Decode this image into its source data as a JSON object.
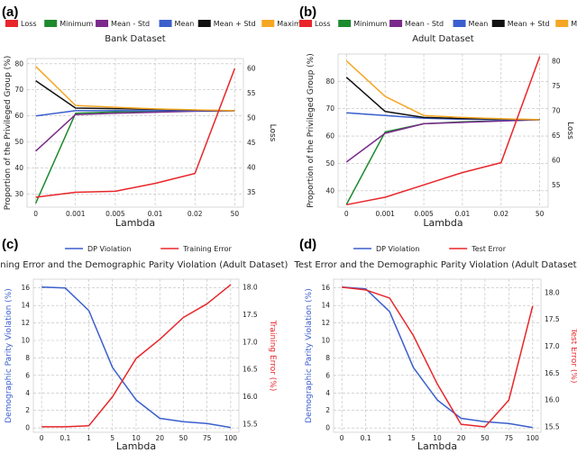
{
  "chart_data": [
    {
      "panel": "(a)",
      "type": "line",
      "title": "Bank Dataset",
      "xlabel": "Lambda",
      "ylabel": "Proportion of the Privileged Group (%)",
      "y2label": "Loss",
      "categories": [
        "0",
        "0.001",
        "0.005",
        "0.01",
        "0.02",
        "50"
      ],
      "ylim": [
        25,
        82
      ],
      "yticks": [
        30,
        40,
        50,
        60,
        70,
        80
      ],
      "y2lim": [
        32,
        62
      ],
      "y2ticks": [
        35,
        40,
        45,
        50,
        55,
        60
      ],
      "series": [
        {
          "name": "Minimum",
          "color": "#1e8a2e",
          "axis": "left",
          "values": [
            26.5,
            61,
            61.5,
            61.8,
            62,
            62
          ]
        },
        {
          "name": "Mean - Std",
          "color": "#7b2a8c",
          "axis": "left",
          "values": [
            46.5,
            60.5,
            61,
            61.4,
            61.8,
            62
          ]
        },
        {
          "name": "Mean",
          "color": "#3a5fcd",
          "axis": "left",
          "values": [
            60,
            62,
            62,
            62,
            62,
            62
          ]
        },
        {
          "name": "Mean + Std",
          "color": "#111111",
          "axis": "left",
          "values": [
            73.5,
            63,
            62.8,
            62.5,
            62.2,
            62
          ]
        },
        {
          "name": "Maximum",
          "color": "#f5a623",
          "axis": "left",
          "values": [
            79,
            64,
            63.3,
            62.7,
            62.3,
            62
          ]
        },
        {
          "name": "Loss",
          "color": "#e8262a",
          "axis": "right",
          "values": [
            34,
            35,
            35.2,
            36.8,
            38.8,
            60
          ]
        }
      ]
    },
    {
      "panel": "(b)",
      "type": "line",
      "title": "Adult Dataset",
      "xlabel": "Lambda",
      "ylabel": "Proportion of the Privileged Group (%)",
      "y2label": "Loss",
      "categories": [
        "0",
        "0.001",
        "0.005",
        "0.01",
        "0.02",
        "50"
      ],
      "ylim": [
        34,
        90
      ],
      "yticks": [
        40,
        50,
        60,
        70,
        80
      ],
      "y2lim": [
        50.5,
        81.5
      ],
      "y2ticks": [
        55,
        60,
        65,
        70,
        75,
        80
      ],
      "series": [
        {
          "name": "Minimum",
          "color": "#1e8a2e",
          "axis": "left",
          "values": [
            35,
            61.5,
            64.5,
            65.2,
            65.6,
            66
          ]
        },
        {
          "name": "Mean - Std",
          "color": "#7b2a8c",
          "axis": "left",
          "values": [
            50.5,
            61,
            64.5,
            65,
            65.5,
            66
          ]
        },
        {
          "name": "Mean",
          "color": "#3a5fcd",
          "axis": "left",
          "values": [
            68.5,
            67.5,
            66.5,
            66.2,
            66,
            66
          ]
        },
        {
          "name": "Mean + Std",
          "color": "#111111",
          "axis": "left",
          "values": [
            81.5,
            69,
            66.8,
            66.4,
            66.2,
            66
          ]
        },
        {
          "name": "Maximum",
          "color": "#f5a623",
          "axis": "left",
          "values": [
            87.5,
            74.5,
            67.5,
            66.8,
            66.3,
            66
          ]
        },
        {
          "name": "Loss",
          "color": "#e8262a",
          "axis": "right",
          "values": [
            51,
            52.5,
            55,
            57.5,
            59.5,
            81
          ]
        }
      ]
    },
    {
      "panel": "(c)",
      "type": "line",
      "title": "Training Error and the Demographic Parity Violation (Adult Dataset)",
      "xlabel": "Lambda",
      "ylabel": "Demographic Parity Violation (%)",
      "y2label": "Training Error (%)",
      "categories": [
        "0",
        "0.1",
        "1",
        "5",
        "10",
        "20",
        "50",
        "75",
        "100"
      ],
      "ylim": [
        -0.5,
        17
      ],
      "yticks": [
        0,
        2,
        4,
        6,
        8,
        10,
        12,
        14,
        16
      ],
      "y2lim": [
        15.35,
        18.15
      ],
      "y2ticks": [
        15.5,
        16.0,
        16.5,
        17.0,
        17.5,
        18.0
      ],
      "series": [
        {
          "name": "DP Violation",
          "color": "#3a5fcd",
          "axis": "left",
          "values": [
            16.1,
            16.0,
            13.4,
            6.9,
            3.2,
            1.1,
            0.7,
            0.5,
            0.05
          ]
        },
        {
          "name": "Training Error",
          "color": "#e8262a",
          "axis": "right",
          "values": [
            15.45,
            15.45,
            15.47,
            16.0,
            16.7,
            17.05,
            17.45,
            17.7,
            18.05
          ]
        }
      ]
    },
    {
      "panel": "(d)",
      "type": "line",
      "title": "Test Error and the Demographic Parity Violation (Adult Dataset)",
      "xlabel": "Lambda",
      "ylabel": "Demographic Parity Violation (%)",
      "y2label": "Test Error (%)",
      "categories": [
        "0",
        "0.1",
        "1",
        "5",
        "10",
        "20",
        "50",
        "75",
        "100"
      ],
      "ylim": [
        -0.5,
        17
      ],
      "yticks": [
        0,
        2,
        4,
        6,
        8,
        10,
        12,
        14,
        16
      ],
      "y2lim": [
        15.4,
        18.25
      ],
      "y2ticks": [
        15.5,
        16.0,
        16.5,
        17.0,
        17.5,
        18.0
      ],
      "series": [
        {
          "name": "DP Violation",
          "color": "#3a5fcd",
          "axis": "left",
          "values": [
            16.1,
            15.9,
            13.3,
            6.9,
            3.2,
            1.1,
            0.7,
            0.5,
            0.05
          ]
        },
        {
          "name": "Test Error",
          "color": "#e8262a",
          "axis": "right",
          "values": [
            18.1,
            18.05,
            17.9,
            17.2,
            16.3,
            15.55,
            15.5,
            16.0,
            17.75
          ]
        }
      ]
    }
  ]
}
